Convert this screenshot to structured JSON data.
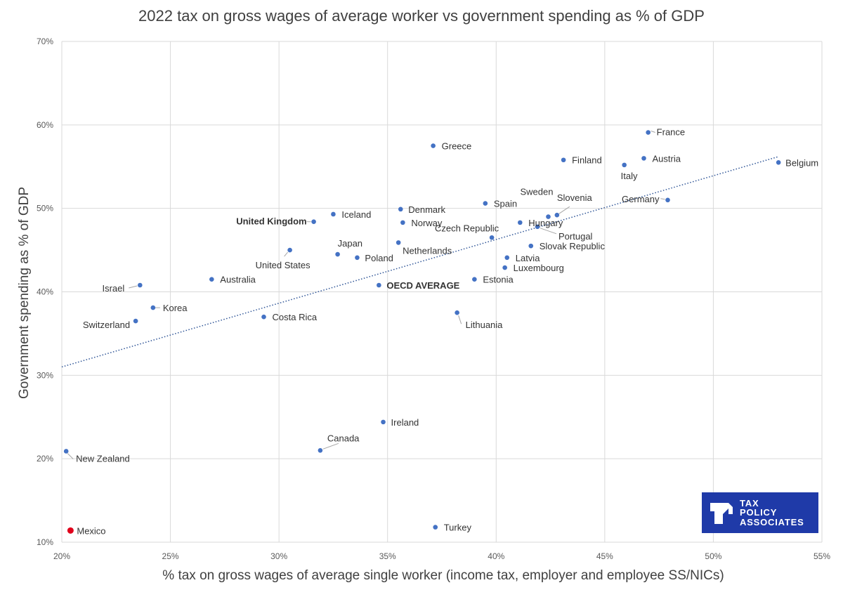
{
  "chart_data": {
    "type": "scatter",
    "title": "2022 tax on gross wages of average worker vs government spending as % of GDP",
    "xlabel": "% tax on gross wages of average single worker (income tax, employer and employee SS/NICs)",
    "ylabel": "Government spending as % of GDP",
    "xlim": [
      20,
      55
    ],
    "ylim": [
      10,
      70
    ],
    "x_ticks": [
      "20%",
      "25%",
      "30%",
      "35%",
      "40%",
      "45%",
      "50%",
      "55%"
    ],
    "y_ticks": [
      "10%",
      "20%",
      "30%",
      "40%",
      "50%",
      "60%",
      "70%"
    ],
    "grid": true,
    "trendline": {
      "style": "dotted",
      "x1": 20,
      "y1": 31,
      "x2": 53,
      "y2": 56.2
    },
    "points": [
      {
        "name": "France",
        "x": 47.0,
        "y": 59.1
      },
      {
        "name": "Greece",
        "x": 37.1,
        "y": 57.5
      },
      {
        "name": "Finland",
        "x": 43.1,
        "y": 55.8
      },
      {
        "name": "Austria",
        "x": 46.8,
        "y": 56.0
      },
      {
        "name": "Italy",
        "x": 45.9,
        "y": 55.2
      },
      {
        "name": "Belgium",
        "x": 53.0,
        "y": 55.5
      },
      {
        "name": "Germany",
        "x": 47.9,
        "y": 51.0
      },
      {
        "name": "Spain",
        "x": 39.5,
        "y": 50.6
      },
      {
        "name": "Sweden",
        "x": 42.4,
        "y": 49.0
      },
      {
        "name": "Slovenia",
        "x": 42.8,
        "y": 49.2
      },
      {
        "name": "Denmark",
        "x": 35.6,
        "y": 49.9
      },
      {
        "name": "Iceland",
        "x": 32.5,
        "y": 49.3
      },
      {
        "name": "United Kingdom",
        "x": 31.6,
        "y": 48.4,
        "highlight": true
      },
      {
        "name": "Norway",
        "x": 35.7,
        "y": 48.3
      },
      {
        "name": "Hungary",
        "x": 41.1,
        "y": 48.3
      },
      {
        "name": "Portugal",
        "x": 41.9,
        "y": 47.8
      },
      {
        "name": "Czech Republic",
        "x": 39.8,
        "y": 46.5
      },
      {
        "name": "Netherlands",
        "x": 35.5,
        "y": 45.9
      },
      {
        "name": "Slovak Republic",
        "x": 41.6,
        "y": 45.5
      },
      {
        "name": "United States",
        "x": 30.5,
        "y": 45.0
      },
      {
        "name": "Japan",
        "x": 32.7,
        "y": 44.5
      },
      {
        "name": "Poland",
        "x": 33.6,
        "y": 44.1
      },
      {
        "name": "Latvia",
        "x": 40.5,
        "y": 44.1
      },
      {
        "name": "Luxembourg",
        "x": 40.4,
        "y": 42.9
      },
      {
        "name": "Australia",
        "x": 26.9,
        "y": 41.5
      },
      {
        "name": "Estonia",
        "x": 39.0,
        "y": 41.5
      },
      {
        "name": "OECD AVERAGE",
        "x": 34.6,
        "y": 40.8,
        "bold": true
      },
      {
        "name": "Israel",
        "x": 23.6,
        "y": 40.8
      },
      {
        "name": "Korea",
        "x": 24.2,
        "y": 38.1
      },
      {
        "name": "Lithuania",
        "x": 38.2,
        "y": 37.5
      },
      {
        "name": "Costa Rica",
        "x": 29.3,
        "y": 37.0
      },
      {
        "name": "Switzerland",
        "x": 23.4,
        "y": 36.5
      },
      {
        "name": "Ireland",
        "x": 34.8,
        "y": 24.4
      },
      {
        "name": "Canada",
        "x": 31.9,
        "y": 21.0
      },
      {
        "name": "New Zealand",
        "x": 20.2,
        "y": 20.9
      },
      {
        "name": "Mexico",
        "x": 20.4,
        "y": 11.4,
        "red_point": true
      },
      {
        "name": "Turkey",
        "x": 37.2,
        "y": 11.8
      }
    ]
  },
  "logo": {
    "lines": [
      "TAX",
      "POLICY",
      "ASSOCIATES"
    ]
  },
  "colors": {
    "point": "#4472c4",
    "highlight": "#e0001b",
    "grid": "#d9d9d9",
    "trendline": "#2f5597",
    "logo_bg": "#1f3aa8"
  }
}
